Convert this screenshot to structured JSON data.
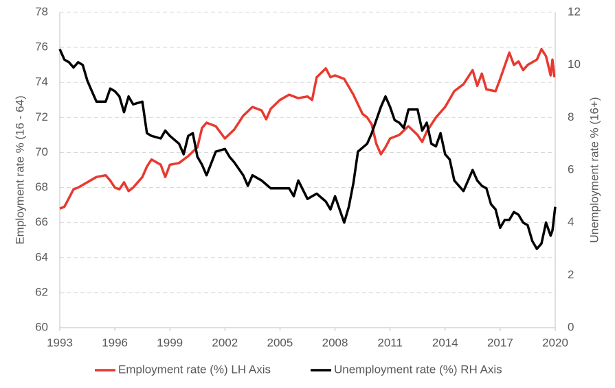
{
  "chart_data": {
    "type": "line",
    "ylabel": "Employment  rate % (16 - 64)",
    "y2label": "Unemployment  rate % (16+)",
    "xlim": [
      1993,
      2020
    ],
    "xticks": [
      1993,
      1996,
      1999,
      2002,
      2005,
      2008,
      2011,
      2014,
      2017,
      2020
    ],
    "ylim": [
      60,
      78
    ],
    "yticks": [
      60,
      62,
      64,
      66,
      68,
      70,
      72,
      74,
      76,
      78
    ],
    "y2lim": [
      0,
      12
    ],
    "y2ticks": [
      0,
      2,
      4,
      6,
      8,
      10,
      12
    ],
    "grid": true,
    "legend": "bottom",
    "series": [
      {
        "name": "Employment rate (%) LH Axis",
        "color": "#e8392f",
        "axis": "y",
        "x": [
          1993.0,
          1993.25,
          1993.5,
          1993.75,
          1994.0,
          1994.5,
          1995.0,
          1995.5,
          1995.75,
          1996.0,
          1996.25,
          1996.5,
          1996.75,
          1997.0,
          1997.5,
          1997.75,
          1998.0,
          1998.5,
          1998.75,
          1999.0,
          1999.5,
          2000.0,
          2000.5,
          2000.75,
          2001.0,
          2001.5,
          2002.0,
          2002.5,
          2003.0,
          2003.5,
          2004.0,
          2004.25,
          2004.5,
          2005.0,
          2005.5,
          2006.0,
          2006.5,
          2006.75,
          2007.0,
          2007.5,
          2007.75,
          2008.0,
          2008.5,
          2009.0,
          2009.5,
          2009.75,
          2010.0,
          2010.25,
          2010.5,
          2010.75,
          2011.0,
          2011.5,
          2012.0,
          2012.5,
          2012.75,
          2013.0,
          2013.5,
          2014.0,
          2014.5,
          2015.0,
          2015.5,
          2015.75,
          2016.0,
          2016.25,
          2016.75,
          2017.0,
          2017.5,
          2017.75,
          2018.0,
          2018.25,
          2018.5,
          2019.0,
          2019.25,
          2019.5,
          2019.75,
          2019.85,
          2019.95
        ],
        "values": [
          66.8,
          66.9,
          67.4,
          67.9,
          68.0,
          68.3,
          68.6,
          68.7,
          68.4,
          68.0,
          67.9,
          68.3,
          67.8,
          68.0,
          68.6,
          69.2,
          69.6,
          69.3,
          68.6,
          69.3,
          69.4,
          69.8,
          70.3,
          71.4,
          71.7,
          71.5,
          70.8,
          71.3,
          72.1,
          72.6,
          72.4,
          71.9,
          72.5,
          73.0,
          73.3,
          73.1,
          73.2,
          73.0,
          74.3,
          74.8,
          74.3,
          74.4,
          74.2,
          73.3,
          72.2,
          72.0,
          71.6,
          70.5,
          69.9,
          70.3,
          70.8,
          71.0,
          71.5,
          71.0,
          70.6,
          71.2,
          72.0,
          72.6,
          73.5,
          73.9,
          74.7,
          73.8,
          74.5,
          73.6,
          73.5,
          74.2,
          75.7,
          75.0,
          75.2,
          74.7,
          75.0,
          75.3,
          75.9,
          75.5,
          74.4,
          75.3,
          74.3
        ]
      },
      {
        "name": "Unemployment rate (%) RH Axis",
        "color": "#000000",
        "axis": "y2",
        "x": [
          1993.0,
          1993.25,
          1993.5,
          1993.75,
          1994.0,
          1994.25,
          1994.5,
          1994.75,
          1995.0,
          1995.5,
          1995.75,
          1996.0,
          1996.25,
          1996.5,
          1996.75,
          1997.0,
          1997.5,
          1997.75,
          1998.0,
          1998.5,
          1998.75,
          1999.0,
          1999.5,
          1999.75,
          2000.0,
          2000.25,
          2000.5,
          2000.75,
          2001.0,
          2001.5,
          2002.0,
          2002.25,
          2002.5,
          2003.0,
          2003.25,
          2003.5,
          2004.0,
          2004.5,
          2005.0,
          2005.5,
          2005.75,
          2006.0,
          2006.5,
          2006.75,
          2007.0,
          2007.5,
          2007.75,
          2008.0,
          2008.5,
          2008.75,
          2009.0,
          2009.25,
          2009.75,
          2010.0,
          2010.5,
          2010.75,
          2011.0,
          2011.25,
          2011.5,
          2011.75,
          2012.0,
          2012.5,
          2012.75,
          2013.0,
          2013.25,
          2013.5,
          2013.75,
          2014.0,
          2014.25,
          2014.5,
          2014.75,
          2015.0,
          2015.25,
          2015.5,
          2015.75,
          2016.0,
          2016.25,
          2016.5,
          2016.75,
          2017.0,
          2017.25,
          2017.5,
          2017.75,
          2018.0,
          2018.25,
          2018.5,
          2018.75,
          2019.0,
          2019.25,
          2019.5,
          2019.75,
          2019.85,
          2020.0
        ],
        "values": [
          10.6,
          10.2,
          10.1,
          9.9,
          10.1,
          10.0,
          9.4,
          9.0,
          8.6,
          8.6,
          9.1,
          9.0,
          8.8,
          8.2,
          8.8,
          8.5,
          8.6,
          7.4,
          7.3,
          7.2,
          7.5,
          7.3,
          7.0,
          6.6,
          7.3,
          7.4,
          6.5,
          6.2,
          5.8,
          6.7,
          6.8,
          6.5,
          6.3,
          5.8,
          5.4,
          5.8,
          5.6,
          5.3,
          5.3,
          5.3,
          5.0,
          5.6,
          4.9,
          5.0,
          5.1,
          4.8,
          4.5,
          5.0,
          4.0,
          4.6,
          5.5,
          6.7,
          7.0,
          7.4,
          8.4,
          8.8,
          8.4,
          7.9,
          7.8,
          7.6,
          8.3,
          8.3,
          7.5,
          7.8,
          7.0,
          6.9,
          7.4,
          6.6,
          6.4,
          5.6,
          5.4,
          5.2,
          5.6,
          6.0,
          5.6,
          5.4,
          5.3,
          4.7,
          4.5,
          3.8,
          4.1,
          4.1,
          4.4,
          4.3,
          4.0,
          3.9,
          3.3,
          3.0,
          3.2,
          4.0,
          3.5,
          3.7,
          4.6
        ]
      }
    ]
  }
}
